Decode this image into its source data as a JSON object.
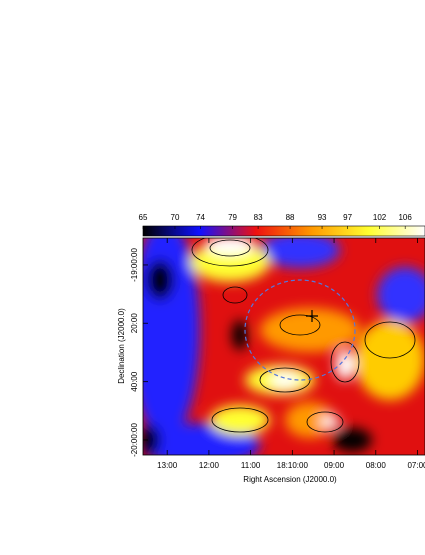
{
  "chart_data": {
    "type": "heatmap",
    "xlabel": "Right Ascension (J2000.0)",
    "ylabel": "Declination (J2000.0)",
    "xlim": [
      13.58,
      6.82
    ],
    "xticks": [
      {
        "value": 13,
        "label": "13:00"
      },
      {
        "value": 12,
        "label": "12:00"
      },
      {
        "value": 11,
        "label": "11:00"
      },
      {
        "value": 10,
        "label": "18:10:00"
      },
      {
        "value": 9,
        "label": "09:00"
      },
      {
        "value": 8,
        "label": "08:00"
      },
      {
        "value": 7,
        "label": "07:00"
      }
    ],
    "ylim": [
      -20.086,
      -18.846
    ],
    "yticks": [
      {
        "value": -19,
        "label": "-19:00:00"
      },
      {
        "value": -19.333,
        "label": "20:00"
      },
      {
        "value": -19.667,
        "label": "40:00"
      },
      {
        "value": -20,
        "label": "-20:00:00"
      }
    ],
    "colorbar": {
      "lim": [
        65,
        109.1
      ],
      "ticks": [
        65,
        70,
        74,
        79,
        83,
        88,
        93,
        97,
        102,
        106
      ],
      "colors": [
        "#000000",
        "#1010ff",
        "#ee1010",
        "#ff9900",
        "#ffff30",
        "#ffffff"
      ]
    }
  }
}
